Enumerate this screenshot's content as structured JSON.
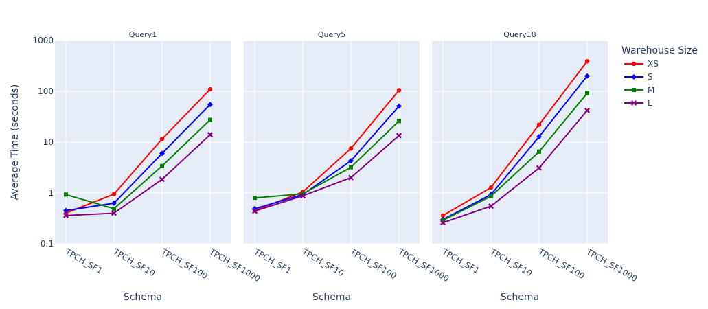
{
  "chart_data": {
    "type": "line",
    "y_scale": "log",
    "ylim": [
      0.1,
      1000
    ],
    "y_ticks": [
      "0.1",
      "1",
      "10",
      "100",
      "1000"
    ],
    "ylabel": "Average Time (seconds)",
    "xlabel": "Schema",
    "categories": [
      "TPCH_SF1",
      "TPCH_SF10",
      "TPCH_SF100",
      "TPCH_SF1000"
    ],
    "grid": true,
    "legend_title": "Warehouse Size",
    "legend_position": "right",
    "series_styles": [
      {
        "name": "XS",
        "color": "#ff0000",
        "marker": "circle"
      },
      {
        "name": "S",
        "color": "#0000ff",
        "marker": "diamond"
      },
      {
        "name": "M",
        "color": "#008000",
        "marker": "square"
      },
      {
        "name": "L",
        "color": "#800080",
        "marker": "x"
      }
    ],
    "facets": [
      {
        "title": "Query1",
        "series": [
          {
            "name": "XS",
            "values": [
              0.4,
              0.95,
              11.5,
              110
            ]
          },
          {
            "name": "S",
            "values": [
              0.45,
              0.63,
              6.0,
              55
            ]
          },
          {
            "name": "M",
            "values": [
              0.93,
              0.49,
              3.4,
              27.5
            ]
          },
          {
            "name": "L",
            "values": [
              0.36,
              0.4,
              1.85,
              14
            ]
          }
        ]
      },
      {
        "title": "Query5",
        "series": [
          {
            "name": "XS",
            "values": [
              0.45,
              1.05,
              7.5,
              105
            ]
          },
          {
            "name": "S",
            "values": [
              0.49,
              0.93,
              4.3,
              51
            ]
          },
          {
            "name": "M",
            "values": [
              0.8,
              0.96,
              3.2,
              26
            ]
          },
          {
            "name": "L",
            "values": [
              0.44,
              0.88,
              2.0,
              13.5
            ]
          }
        ]
      },
      {
        "title": "Query18",
        "series": [
          {
            "name": "XS",
            "values": [
              0.36,
              1.28,
              22,
              390
            ]
          },
          {
            "name": "S",
            "values": [
              0.3,
              0.93,
              12.8,
              200
            ]
          },
          {
            "name": "M",
            "values": [
              0.29,
              0.86,
              6.5,
              92
            ]
          },
          {
            "name": "L",
            "values": [
              0.26,
              0.55,
              3.1,
              42
            ]
          }
        ]
      }
    ]
  }
}
